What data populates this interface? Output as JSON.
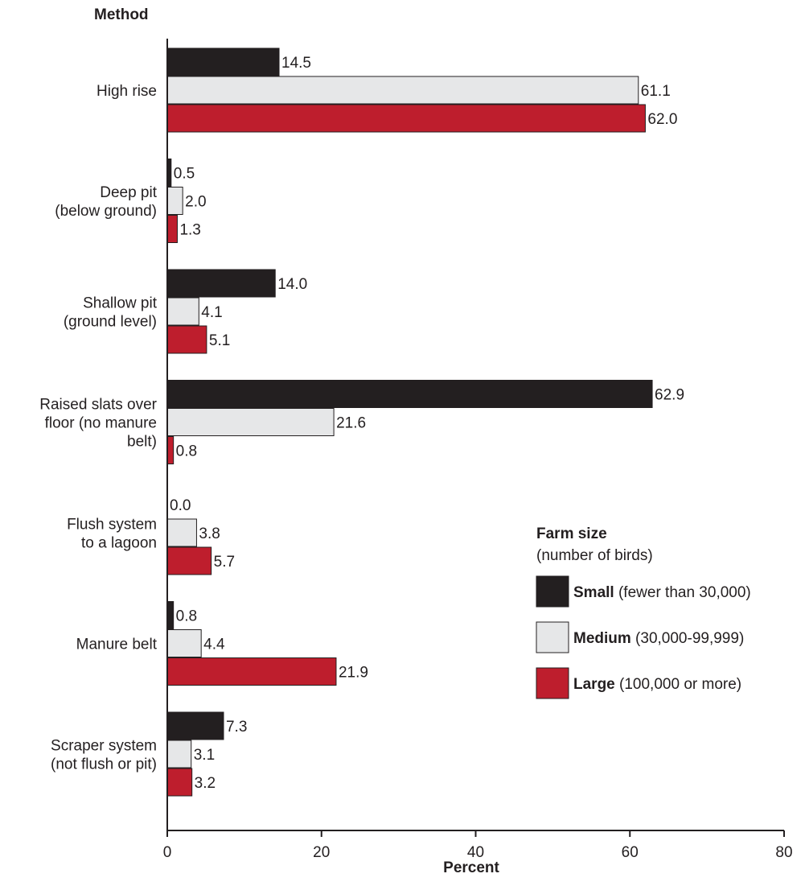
{
  "chart_data": {
    "type": "bar",
    "orientation": "horizontal",
    "y_axis_title": "Method",
    "x_axis_title": "Percent",
    "xlim": [
      0,
      80
    ],
    "x_ticks": [
      "0",
      "20",
      "40",
      "60",
      "80"
    ],
    "grid": false,
    "categories": [
      [
        "High rise"
      ],
      [
        "Deep pit",
        "(below ground)"
      ],
      [
        "Shallow pit",
        "(ground level)"
      ],
      [
        "Raised slats over",
        "floor (no manure",
        "belt)"
      ],
      [
        "Flush system",
        "to a lagoon"
      ],
      [
        "Manure belt"
      ],
      [
        "Scraper system",
        "(not flush or pit)"
      ]
    ],
    "series": [
      {
        "name": "Small",
        "color": "#231f20",
        "values": [
          14.5,
          0.5,
          14.0,
          62.9,
          0.0,
          0.8,
          7.3
        ],
        "labels": [
          "14.5",
          "0.5",
          "14.0",
          "62.9",
          "0.0",
          "0.8",
          "7.3"
        ]
      },
      {
        "name": "Medium",
        "color": "#e6e7e8",
        "values": [
          61.1,
          2.0,
          4.1,
          21.6,
          3.8,
          4.4,
          3.1
        ],
        "labels": [
          "61.1",
          "2.0",
          "4.1",
          "21.6",
          "3.8",
          "4.4",
          "3.1"
        ]
      },
      {
        "name": "Large",
        "color": "#be1e2d",
        "values": [
          62.0,
          1.3,
          5.1,
          0.8,
          5.7,
          21.9,
          3.2
        ],
        "labels": [
          "62.0",
          "1.3",
          "5.1",
          "0.8",
          "5.7",
          "21.9",
          "3.2"
        ]
      }
    ],
    "legend": {
      "position": "right",
      "title": "Farm size",
      "subtitle": "(number of birds)",
      "items": [
        {
          "bold": "Small",
          "rest": " (fewer than 30,000)"
        },
        {
          "bold": "Medium",
          "rest": " (30,000-99,999)"
        },
        {
          "bold": "Large",
          "rest": " (100,000 or more)"
        }
      ]
    }
  }
}
